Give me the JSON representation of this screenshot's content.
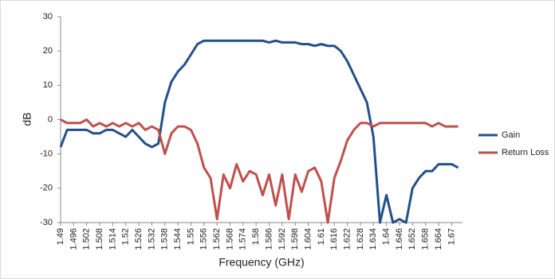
{
  "chart_data": {
    "type": "line",
    "xlabel": "Frequency (GHz)",
    "ylabel": "dB",
    "x": [
      1.49,
      1.493,
      1.496,
      1.499,
      1.502,
      1.505,
      1.508,
      1.511,
      1.514,
      1.517,
      1.52,
      1.523,
      1.526,
      1.529,
      1.532,
      1.535,
      1.538,
      1.541,
      1.544,
      1.547,
      1.55,
      1.553,
      1.556,
      1.559,
      1.562,
      1.565,
      1.568,
      1.571,
      1.574,
      1.577,
      1.58,
      1.583,
      1.586,
      1.589,
      1.592,
      1.595,
      1.598,
      1.601,
      1.604,
      1.607,
      1.61,
      1.613,
      1.616,
      1.619,
      1.622,
      1.625,
      1.628,
      1.631,
      1.634,
      1.637,
      1.64,
      1.643,
      1.646,
      1.649,
      1.652,
      1.655,
      1.658,
      1.661,
      1.664,
      1.667,
      1.67,
      1.673
    ],
    "series": [
      {
        "name": "Gain",
        "color": "#24508a",
        "values": [
          -8,
          -3,
          -3,
          -3,
          -3,
          -4,
          -4,
          -3,
          -3,
          -4,
          -5,
          -3,
          -5,
          -7,
          -8,
          -7,
          5,
          11,
          14,
          16,
          19,
          22,
          23,
          23,
          23,
          23,
          23,
          23,
          23,
          23,
          23,
          23,
          22.5,
          23,
          22.5,
          22.5,
          22.5,
          22,
          22,
          21.5,
          22,
          21.5,
          21.5,
          20,
          17,
          13,
          9,
          5,
          -5,
          -30,
          -22,
          -30,
          -29,
          -30,
          -20,
          -17,
          -15,
          -15,
          -13,
          -13,
          -13,
          -14
        ]
      },
      {
        "name": "Return Loss",
        "color": "#c0504d",
        "values": [
          0,
          -1,
          -1,
          -1,
          0,
          -2,
          -1,
          -2,
          -1,
          -2,
          -1,
          -2,
          -1,
          -3,
          -2,
          -3,
          -10,
          -4,
          -2,
          -2,
          -3,
          -7,
          -14,
          -17,
          -29,
          -16,
          -20,
          -13,
          -18,
          -15,
          -16,
          -22,
          -16,
          -25,
          -16,
          -29,
          -16,
          -21,
          -15,
          -14,
          -18,
          -30,
          -17,
          -12,
          -6,
          -3,
          -1,
          -1,
          -2,
          -1,
          -1,
          -1,
          -1,
          -1,
          -1,
          -1,
          -1,
          -2,
          -1,
          -2,
          -2,
          -2
        ]
      }
    ],
    "xlim": [
      1.49,
      1.675
    ],
    "xticks": [
      1.49,
      1.496,
      1.502,
      1.508,
      1.514,
      1.52,
      1.526,
      1.532,
      1.538,
      1.544,
      1.55,
      1.556,
      1.562,
      1.568,
      1.574,
      1.58,
      1.586,
      1.592,
      1.598,
      1.604,
      1.61,
      1.616,
      1.622,
      1.628,
      1.634,
      1.64,
      1.646,
      1.652,
      1.658,
      1.664,
      1.67
    ],
    "ylim": [
      -30,
      30
    ],
    "yticks": [
      -30,
      -20,
      -10,
      0,
      10,
      20,
      30
    ],
    "grid": false,
    "legend": "right"
  }
}
